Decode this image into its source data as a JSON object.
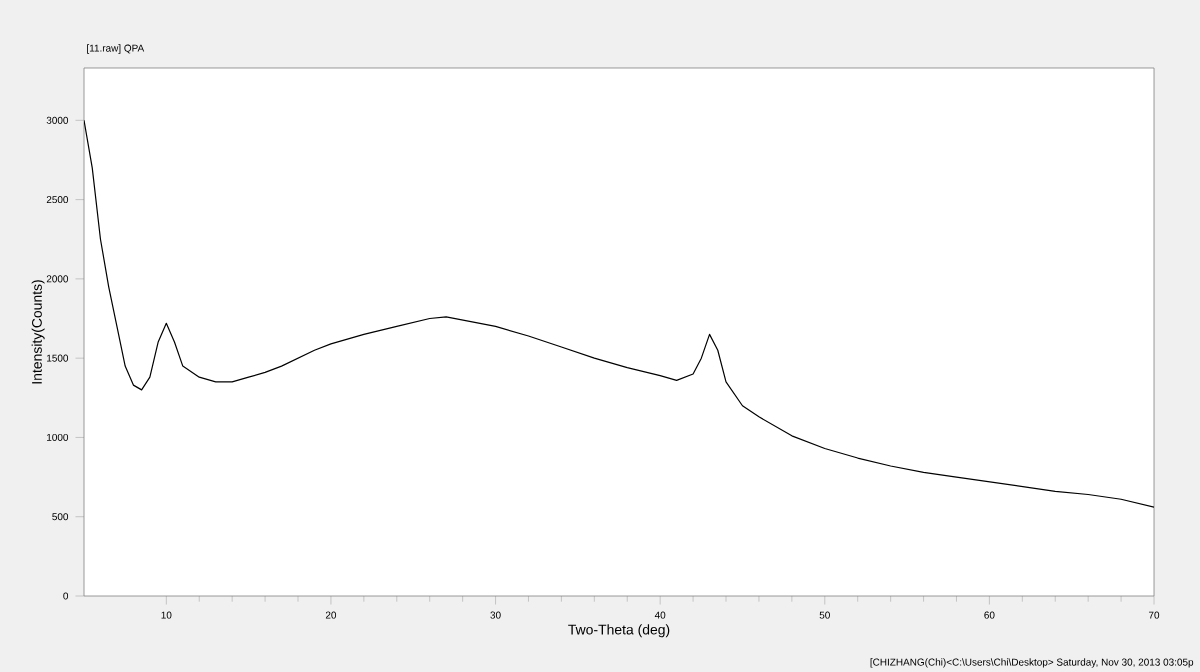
{
  "chart_data": {
    "type": "line",
    "title": "[11.raw] QPA",
    "xlabel": "Two-Theta (deg)",
    "ylabel": "Intensity(Counts)",
    "annotations": [
      "[CHIZHANG(Chi)<C:\\Users\\Chi\\Desktop> Saturday, Nov 30, 2013 03:05p"
    ],
    "xlim": [
      5,
      70
    ],
    "ylim": [
      0,
      3330
    ],
    "xticks": [
      10,
      20,
      30,
      40,
      50,
      60,
      70
    ],
    "yticks": [
      0,
      500,
      1000,
      1500,
      2000,
      2500,
      3000
    ],
    "grid": false,
    "marker": "none",
    "line_style": "solid",
    "series": [
      {
        "color": "#000000",
        "x": [
          5,
          5.5,
          6,
          6.5,
          7,
          7.5,
          8,
          8.5,
          9,
          9.5,
          10,
          10.5,
          11,
          12,
          13,
          14,
          15,
          16,
          17,
          18,
          19,
          20,
          22,
          24,
          26,
          27,
          28,
          30,
          32,
          34,
          36,
          38,
          40,
          41,
          42,
          42.5,
          43,
          43.5,
          44,
          45,
          46,
          48,
          50,
          52,
          54,
          56,
          58,
          60,
          62,
          64,
          66,
          68,
          70
        ],
        "values": [
          3000,
          2700,
          2250,
          1950,
          1700,
          1450,
          1330,
          1300,
          1380,
          1600,
          1720,
          1600,
          1450,
          1380,
          1350,
          1350,
          1380,
          1410,
          1450,
          1500,
          1550,
          1590,
          1650,
          1700,
          1750,
          1760,
          1740,
          1700,
          1640,
          1570,
          1500,
          1440,
          1390,
          1360,
          1400,
          1500,
          1650,
          1550,
          1350,
          1200,
          1130,
          1010,
          930,
          870,
          820,
          780,
          750,
          720,
          690,
          660,
          640,
          610,
          560
        ]
      }
    ]
  }
}
